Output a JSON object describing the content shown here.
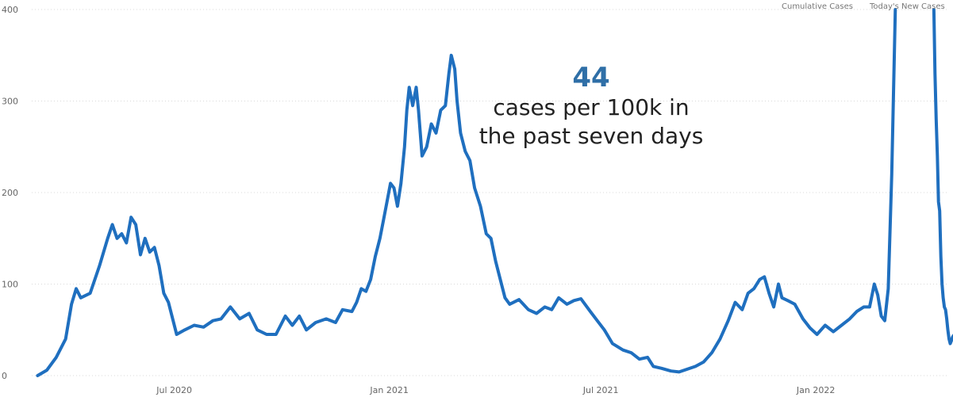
{
  "callout": {
    "value": "44",
    "text_line1": "cases per 100k in",
    "text_line2": "the past seven days"
  },
  "legend": [
    "Cumulative Cases",
    "Today's New Cases"
  ],
  "colors": {
    "line": "#1f6fbf",
    "callout_value": "#2f6fa7",
    "grid": "#d9d9d9"
  },
  "chart_data": {
    "type": "line",
    "title": "",
    "xlabel": "",
    "ylabel": "",
    "ylim": [
      0,
      400
    ],
    "xlim": [
      "2020-03-01",
      "2022-04-25"
    ],
    "yticks": [
      0,
      100,
      200,
      300,
      400
    ],
    "xticks": [
      {
        "date": "2020-07-01",
        "label": "Jul 2020"
      },
      {
        "date": "2021-01-01",
        "label": "Jan 2021"
      },
      {
        "date": "2021-07-01",
        "label": "Jul 2021"
      },
      {
        "date": "2022-01-01",
        "label": "Jan 2022"
      }
    ],
    "grid": true,
    "legend_position": "top-right",
    "series": [
      {
        "points": [
          [
            "2020-03-06",
            0
          ],
          [
            "2020-03-14",
            6
          ],
          [
            "2020-03-22",
            20
          ],
          [
            "2020-03-30",
            40
          ],
          [
            "2020-04-04",
            78
          ],
          [
            "2020-04-08",
            95
          ],
          [
            "2020-04-12",
            85
          ],
          [
            "2020-04-20",
            90
          ],
          [
            "2020-04-28",
            120
          ],
          [
            "2020-05-05",
            150
          ],
          [
            "2020-05-09",
            165
          ],
          [
            "2020-05-13",
            150
          ],
          [
            "2020-05-17",
            155
          ],
          [
            "2020-05-21",
            145
          ],
          [
            "2020-05-25",
            173
          ],
          [
            "2020-05-29",
            165
          ],
          [
            "2020-06-02",
            132
          ],
          [
            "2020-06-06",
            150
          ],
          [
            "2020-06-10",
            135
          ],
          [
            "2020-06-14",
            140
          ],
          [
            "2020-06-18",
            120
          ],
          [
            "2020-06-22",
            90
          ],
          [
            "2020-06-26",
            80
          ],
          [
            "2020-06-30",
            60
          ],
          [
            "2020-07-03",
            45
          ],
          [
            "2020-07-10",
            50
          ],
          [
            "2020-07-18",
            55
          ],
          [
            "2020-07-26",
            53
          ],
          [
            "2020-08-03",
            60
          ],
          [
            "2020-08-10",
            62
          ],
          [
            "2020-08-18",
            75
          ],
          [
            "2020-08-26",
            62
          ],
          [
            "2020-09-03",
            68
          ],
          [
            "2020-09-10",
            50
          ],
          [
            "2020-09-18",
            45
          ],
          [
            "2020-09-26",
            45
          ],
          [
            "2020-10-04",
            65
          ],
          [
            "2020-10-10",
            55
          ],
          [
            "2020-10-16",
            65
          ],
          [
            "2020-10-22",
            50
          ],
          [
            "2020-10-30",
            58
          ],
          [
            "2020-11-08",
            62
          ],
          [
            "2020-11-16",
            58
          ],
          [
            "2020-11-22",
            72
          ],
          [
            "2020-11-30",
            70
          ],
          [
            "2020-12-04",
            80
          ],
          [
            "2020-12-08",
            95
          ],
          [
            "2020-12-12",
            92
          ],
          [
            "2020-12-16",
            105
          ],
          [
            "2020-12-20",
            130
          ],
          [
            "2020-12-24",
            150
          ],
          [
            "2020-12-27",
            170
          ],
          [
            "2020-12-30",
            190
          ],
          [
            "2021-01-02",
            210
          ],
          [
            "2021-01-05",
            205
          ],
          [
            "2021-01-08",
            185
          ],
          [
            "2021-01-11",
            210
          ],
          [
            "2021-01-14",
            250
          ],
          [
            "2021-01-16",
            290
          ],
          [
            "2021-01-18",
            315
          ],
          [
            "2021-01-21",
            295
          ],
          [
            "2021-01-24",
            315
          ],
          [
            "2021-01-26",
            290
          ],
          [
            "2021-01-29",
            240
          ],
          [
            "2021-02-02",
            250
          ],
          [
            "2021-02-06",
            275
          ],
          [
            "2021-02-10",
            265
          ],
          [
            "2021-02-14",
            290
          ],
          [
            "2021-02-18",
            295
          ],
          [
            "2021-02-21",
            330
          ],
          [
            "2021-02-23",
            350
          ],
          [
            "2021-02-26",
            335
          ],
          [
            "2021-02-28",
            300
          ],
          [
            "2021-03-03",
            265
          ],
          [
            "2021-03-07",
            245
          ],
          [
            "2021-03-11",
            235
          ],
          [
            "2021-03-15",
            205
          ],
          [
            "2021-03-20",
            185
          ],
          [
            "2021-03-25",
            155
          ],
          [
            "2021-03-29",
            150
          ],
          [
            "2021-04-02",
            125
          ],
          [
            "2021-04-06",
            105
          ],
          [
            "2021-04-10",
            85
          ],
          [
            "2021-04-14",
            78
          ],
          [
            "2021-04-22",
            83
          ],
          [
            "2021-04-30",
            72
          ],
          [
            "2021-05-07",
            68
          ],
          [
            "2021-05-14",
            75
          ],
          [
            "2021-05-20",
            72
          ],
          [
            "2021-05-26",
            85
          ],
          [
            "2021-06-02",
            78
          ],
          [
            "2021-06-08",
            82
          ],
          [
            "2021-06-14",
            84
          ],
          [
            "2021-06-22",
            70
          ],
          [
            "2021-06-28",
            60
          ],
          [
            "2021-07-04",
            50
          ],
          [
            "2021-07-11",
            35
          ],
          [
            "2021-07-20",
            28
          ],
          [
            "2021-07-27",
            25
          ],
          [
            "2021-08-03",
            18
          ],
          [
            "2021-08-10",
            20
          ],
          [
            "2021-08-15",
            10
          ],
          [
            "2021-08-22",
            8
          ],
          [
            "2021-08-30",
            5
          ],
          [
            "2021-09-06",
            4
          ],
          [
            "2021-09-13",
            7
          ],
          [
            "2021-09-20",
            10
          ],
          [
            "2021-09-27",
            15
          ],
          [
            "2021-10-04",
            25
          ],
          [
            "2021-10-11",
            40
          ],
          [
            "2021-10-18",
            60
          ],
          [
            "2021-10-24",
            80
          ],
          [
            "2021-10-30",
            72
          ],
          [
            "2021-11-04",
            90
          ],
          [
            "2021-11-09",
            95
          ],
          [
            "2021-11-14",
            105
          ],
          [
            "2021-11-18",
            108
          ],
          [
            "2021-11-22",
            90
          ],
          [
            "2021-11-26",
            75
          ],
          [
            "2021-11-30",
            100
          ],
          [
            "2021-12-03",
            85
          ],
          [
            "2021-12-08",
            82
          ],
          [
            "2021-12-14",
            78
          ],
          [
            "2021-12-21",
            62
          ],
          [
            "2021-12-27",
            52
          ],
          [
            "2022-01-02",
            45
          ],
          [
            "2022-01-09",
            55
          ],
          [
            "2022-01-16",
            48
          ],
          [
            "2022-01-23",
            55
          ],
          [
            "2022-01-30",
            62
          ],
          [
            "2022-02-05",
            70
          ],
          [
            "2022-02-11",
            75
          ],
          [
            "2022-02-16",
            75
          ],
          [
            "2022-02-20",
            100
          ],
          [
            "2022-02-23",
            88
          ],
          [
            "2022-02-26",
            65
          ],
          [
            "2022-03-01",
            60
          ],
          [
            "2022-03-04",
            95
          ],
          [
            "2022-03-07",
            220
          ],
          [
            "2022-03-10",
            400
          ]
        ]
      },
      {
        "points": [
          [
            "2022-04-12",
            400
          ],
          [
            "2022-04-13",
            330
          ],
          [
            "2022-04-14",
            280
          ],
          [
            "2022-04-15",
            240
          ],
          [
            "2022-04-16",
            190
          ],
          [
            "2022-04-17",
            180
          ],
          [
            "2022-04-18",
            130
          ],
          [
            "2022-04-19",
            100
          ],
          [
            "2022-04-20",
            85
          ],
          [
            "2022-04-21",
            75
          ],
          [
            "2022-04-22",
            72
          ],
          [
            "2022-04-23",
            62
          ],
          [
            "2022-04-24",
            50
          ],
          [
            "2022-04-25",
            40
          ],
          [
            "2022-04-26",
            35
          ],
          [
            "2022-04-27",
            38
          ],
          [
            "2022-04-28",
            42
          ],
          [
            "2022-04-29",
            44
          ]
        ]
      }
    ]
  }
}
